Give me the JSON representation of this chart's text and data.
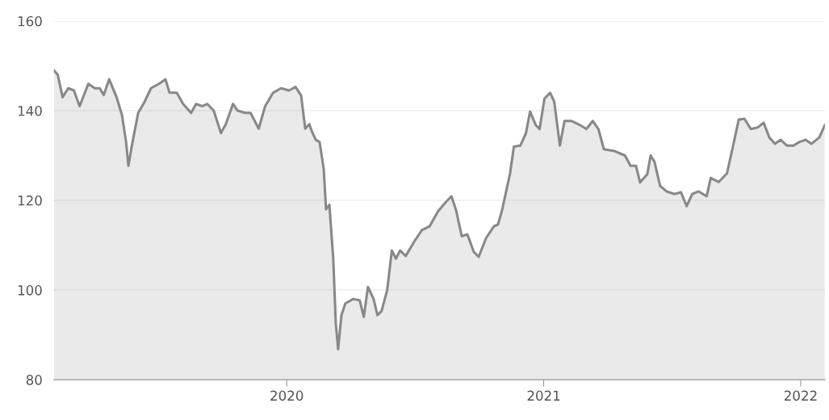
{
  "chart_data": {
    "type": "area",
    "x": [
      2019.094,
      2019.109,
      2019.128,
      2019.15,
      2019.172,
      2019.194,
      2019.228,
      2019.253,
      2019.272,
      2019.288,
      2019.309,
      2019.338,
      2019.359,
      2019.375,
      2019.384,
      2019.4,
      2019.422,
      2019.447,
      2019.472,
      2019.503,
      2019.528,
      2019.544,
      2019.572,
      2019.597,
      2019.628,
      2019.647,
      2019.672,
      2019.691,
      2019.716,
      2019.744,
      2019.763,
      2019.791,
      2019.809,
      2019.838,
      2019.859,
      2019.891,
      2019.916,
      2019.947,
      2019.978,
      2020.009,
      2020.034,
      2020.056,
      2020.072,
      2020.088,
      2020.097,
      2020.113,
      2020.128,
      2020.144,
      2020.153,
      2020.166,
      2020.181,
      2020.191,
      2020.2,
      2020.213,
      2020.228,
      2020.259,
      2020.284,
      2020.3,
      2020.316,
      2020.338,
      2020.353,
      2020.369,
      2020.391,
      2020.409,
      2020.425,
      2020.441,
      2020.463,
      2020.494,
      2020.525,
      2020.556,
      2020.588,
      2020.619,
      2020.641,
      2020.659,
      2020.681,
      2020.703,
      2020.728,
      2020.747,
      2020.775,
      2020.806,
      2020.822,
      2020.838,
      2020.869,
      2020.884,
      2020.909,
      2020.931,
      2020.947,
      2020.969,
      2020.984,
      2021.003,
      2021.025,
      2021.041,
      2021.063,
      2021.081,
      2021.109,
      2021.141,
      2021.166,
      2021.191,
      2021.213,
      2021.234,
      2021.275,
      2021.316,
      2021.338,
      2021.359,
      2021.375,
      2021.403,
      2021.416,
      2021.431,
      2021.453,
      2021.478,
      2021.509,
      2021.534,
      2021.556,
      2021.578,
      2021.603,
      2021.634,
      2021.65,
      2021.681,
      2021.713,
      2021.734,
      2021.759,
      2021.781,
      2021.806,
      2021.831,
      2021.856,
      2021.878,
      2021.9,
      2021.922,
      2021.947,
      2021.972,
      2021.994,
      2022.019,
      2022.041,
      2022.072,
      2022.094
    ],
    "series": [
      {
        "color": "#888888",
        "values": [
          149,
          148,
          143,
          145,
          144.5,
          141,
          146,
          145,
          145,
          143.5,
          147,
          143,
          139,
          133,
          127.7,
          133,
          139.5,
          142,
          145,
          146,
          147,
          144,
          144,
          141.5,
          139.5,
          141.5,
          141,
          141.5,
          140,
          135,
          137,
          141.5,
          140,
          139.5,
          139.5,
          136,
          141,
          144,
          145,
          144.5,
          145.3,
          143.4,
          136,
          137,
          135.5,
          133.5,
          133,
          127,
          118,
          119,
          107,
          92.6,
          86.8,
          94.4,
          97,
          98,
          97.7,
          94,
          100.7,
          98,
          94.4,
          95.3,
          100,
          108.8,
          107,
          108.8,
          107.6,
          110.6,
          113.3,
          114.2,
          117.5,
          119.6,
          120.9,
          117.8,
          112,
          112.4,
          108.5,
          107.4,
          111.5,
          114.2,
          114.6,
          117.8,
          126,
          132,
          132.2,
          135,
          139.8,
          136.8,
          135.9,
          142.7,
          144,
          142,
          132.2,
          137.7,
          137.7,
          136.8,
          135.9,
          137.7,
          135.9,
          131.4,
          131,
          130,
          127.7,
          127.7,
          124,
          125.8,
          130,
          128.6,
          123.2,
          122,
          121.4,
          121.8,
          118.7,
          121.4,
          122,
          120.9,
          125,
          124.1,
          126,
          131.4,
          138,
          138.2,
          135.9,
          136.2,
          137.3,
          134,
          132.6,
          133.5,
          132.2,
          132.2,
          133,
          133.5,
          132.6,
          134,
          136.8
        ]
      }
    ],
    "xlim": [
      2019.094,
      2022.094
    ],
    "xticks": [
      2020,
      2021,
      2022
    ],
    "ylim": [
      80,
      160
    ],
    "yticks": [
      80,
      100,
      120,
      140,
      160
    ],
    "grid": "y"
  }
}
